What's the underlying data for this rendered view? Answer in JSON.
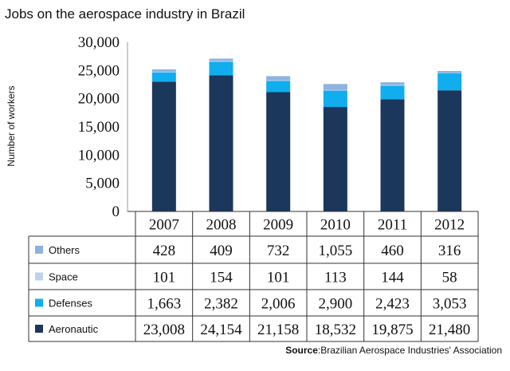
{
  "title": "Jobs on the aerospace industry in Brazil",
  "source": {
    "label": "Source",
    "text": ":Brazilian Aerospace Industries' Association"
  },
  "chart_data": {
    "type": "bar",
    "stacked": true,
    "title": "Jobs on the aerospace industry in Brazil",
    "xlabel": "",
    "ylabel": "Number of workers",
    "ylim": [
      0,
      30000
    ],
    "yticks": [
      0,
      5000,
      10000,
      15000,
      20000,
      25000,
      30000
    ],
    "ytick_labels": [
      "0",
      "5,000",
      "10,000",
      "15,000",
      "20,000",
      "25,000",
      "30,000"
    ],
    "categories": [
      "2007",
      "2008",
      "2009",
      "2010",
      "2011",
      "2012"
    ],
    "series": [
      {
        "name": "Aeronautic",
        "color": "#1b375c",
        "values": [
          23008,
          24154,
          21158,
          18532,
          19875,
          21480
        ],
        "labels": [
          "23,008",
          "24,154",
          "21,158",
          "18,532",
          "19,875",
          "21,480"
        ]
      },
      {
        "name": "Defenses",
        "color": "#10aeee",
        "values": [
          1663,
          2382,
          2006,
          2900,
          2423,
          3053
        ],
        "labels": [
          "1,663",
          "2,382",
          "2,006",
          "2,900",
          "2,423",
          "3,053"
        ]
      },
      {
        "name": "Space",
        "color": "#bcd3ef",
        "values": [
          101,
          154,
          101,
          113,
          144,
          58
        ],
        "labels": [
          "101",
          "154",
          "101",
          "113",
          "144",
          "58"
        ]
      },
      {
        "name": "Others",
        "color": "#8fb1e0",
        "values": [
          428,
          409,
          732,
          1055,
          460,
          316
        ],
        "labels": [
          "428",
          "409",
          "732",
          "1,055",
          "460",
          "316"
        ]
      }
    ],
    "table_row_order": [
      "Others",
      "Space",
      "Defenses",
      "Aeronautic"
    ],
    "grid": false,
    "legend": "data table"
  }
}
